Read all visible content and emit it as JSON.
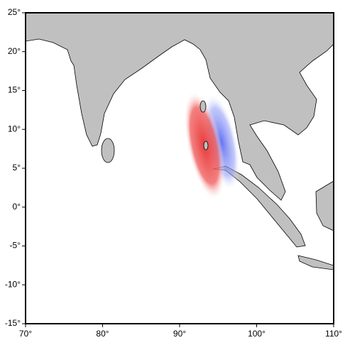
{
  "map": {
    "xlim": [
      70,
      110
    ],
    "ylim": [
      -15,
      25
    ],
    "xticks": [
      {
        "value": 70,
        "label": "70°"
      },
      {
        "value": 80,
        "label": "80°"
      },
      {
        "value": 90,
        "label": "90°"
      },
      {
        "value": 100,
        "label": "100°"
      },
      {
        "value": 110,
        "label": "110°"
      }
    ],
    "yticks": [
      {
        "value": 25,
        "label": "25°"
      },
      {
        "value": 20,
        "label": "20°"
      },
      {
        "value": 15,
        "label": "15°"
      },
      {
        "value": 10,
        "label": "10°"
      },
      {
        "value": 5,
        "label": "5°"
      },
      {
        "value": 0,
        "label": "0°"
      },
      {
        "value": -5,
        "label": "-5°"
      },
      {
        "value": -10,
        "label": "-10°"
      },
      {
        "value": -15,
        "label": "-15°"
      }
    ]
  }
}
